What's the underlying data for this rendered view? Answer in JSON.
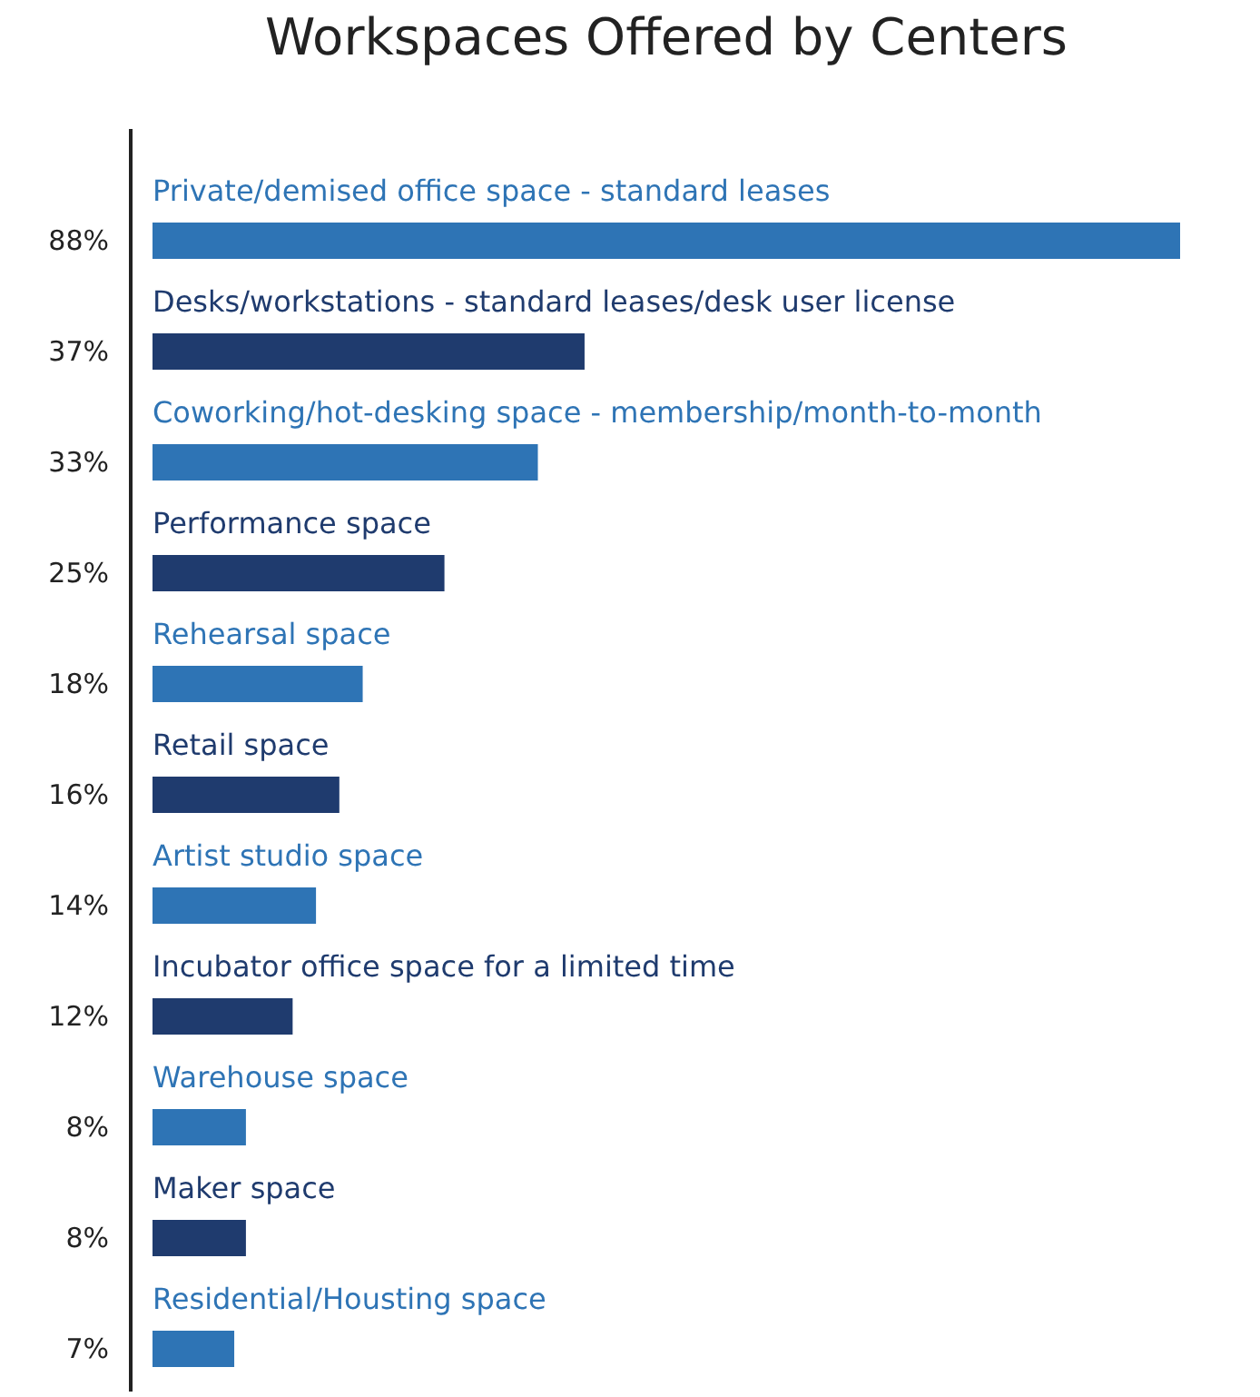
{
  "chart_data": {
    "type": "bar",
    "orientation": "horizontal",
    "title": "Workspaces Offered by Centers",
    "categories": [
      "Private/demised office space - standard leases",
      "Desks/workstations - standard leases/desk user license",
      "Coworking/hot-desking space - membership/month-to-month",
      "Performance space",
      "Rehearsal space",
      "Retail space",
      "Artist studio space",
      "Incubator office space for a limited time",
      "Warehouse space",
      "Maker space",
      "Residential/Housting space"
    ],
    "values": [
      88,
      37,
      33,
      25,
      18,
      16,
      14,
      12,
      8,
      8,
      7
    ],
    "value_labels": [
      "88%",
      "37%",
      "33%",
      "25%",
      "18%",
      "16%",
      "14%",
      "12%",
      "8%",
      "8%",
      "7%"
    ],
    "colors": [
      "#2e74b5",
      "#1f3b6e",
      "#2e74b5",
      "#1f3b6e",
      "#2e74b5",
      "#1f3b6e",
      "#2e74b5",
      "#1f3b6e",
      "#2e74b5",
      "#1f3b6e",
      "#2e74b5"
    ]
  }
}
